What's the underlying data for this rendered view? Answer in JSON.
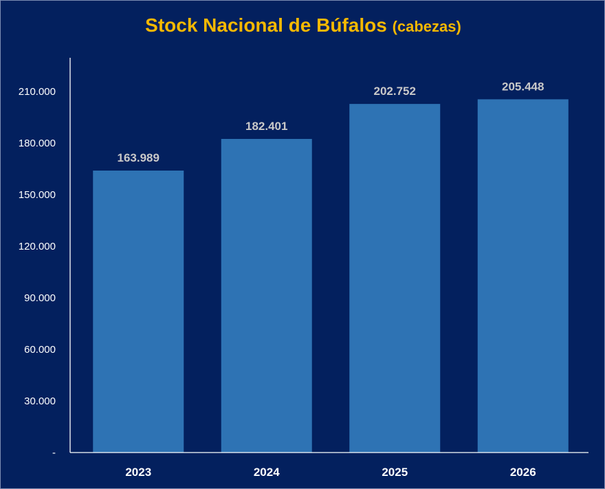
{
  "chart_data": {
    "type": "bar",
    "title": "Stock Nacional de Búfalos",
    "subtitle": "(cabezas)",
    "categories": [
      "2023",
      "2024",
      "2025",
      "2026"
    ],
    "values": [
      163989,
      182401,
      202752,
      205448
    ],
    "value_labels": [
      "163.989",
      "182.401",
      "202.752",
      "205.448"
    ],
    "y_tick_labels": [
      "-",
      "30.000",
      "60.000",
      "90.000",
      "120.000",
      "150.000",
      "180.000",
      "210.000"
    ],
    "y_tick_values": [
      0,
      30000,
      60000,
      90000,
      120000,
      150000,
      180000,
      210000
    ],
    "ylim": [
      0,
      229000
    ],
    "grid": false,
    "legend": "none",
    "colors": {
      "background": "#03205e",
      "bar": "#2e73b4",
      "title": "#f5b800",
      "axis": "#ffffff",
      "data_label": "#c9c9c9"
    }
  }
}
